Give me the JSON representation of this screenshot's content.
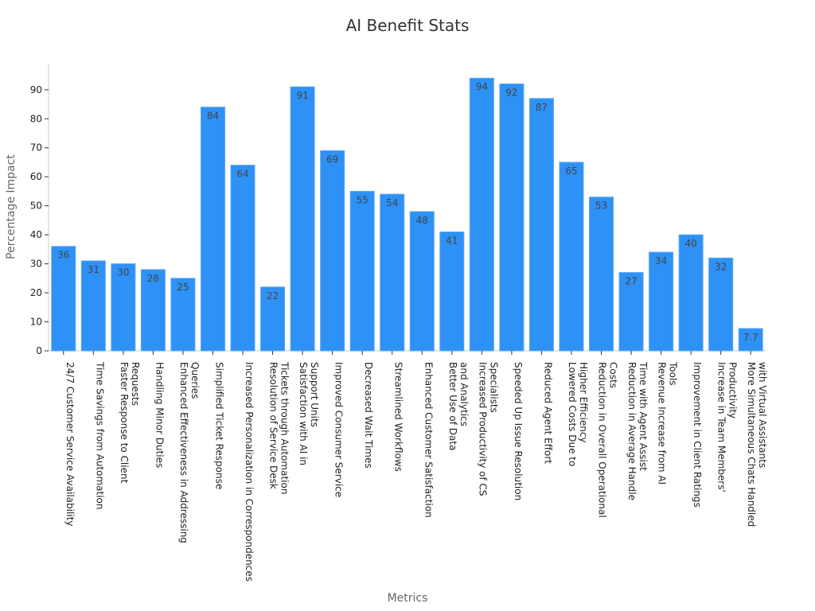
{
  "chart_data": {
    "type": "bar",
    "title": "AI Benefit Stats",
    "xlabel": "Metrics",
    "ylabel": "Percentage Impact",
    "ylim": [
      0,
      99
    ],
    "yticks": [
      0,
      10,
      20,
      30,
      40,
      50,
      60,
      70,
      80,
      90
    ],
    "grid": false,
    "bar_color": "#2e91f5",
    "categories": [
      [
        "24/7 Customer Service Availability"
      ],
      [
        "Time Savings from Automation"
      ],
      [
        "Faster Response to Client",
        "Requests"
      ],
      [
        "Handling Minor Duties"
      ],
      [
        "Enhanced Effectiveness in Addressing",
        "Queries"
      ],
      [
        "Simplified Ticket Response"
      ],
      [
        "Increased Personalization in Correspondences"
      ],
      [
        "Resolution of Service Desk",
        "Tickets through Automation"
      ],
      [
        "Satisfaction with AI in",
        "Support Units"
      ],
      [
        "Improved Consumer Service"
      ],
      [
        "Decreased Wait Times"
      ],
      [
        "Streamlined Workflows"
      ],
      [
        "Enhanced Customer Satisfaction"
      ],
      [
        "Better Use of Data",
        "and Analytics"
      ],
      [
        "Increased Productivity of CS",
        "Specialists"
      ],
      [
        "Speeded Up Issue Resolution"
      ],
      [
        "Reduced Agent Effort"
      ],
      [
        "Lowered Costs Due to",
        "Higher Efficiency"
      ],
      [
        "Reduction in Overall Operational",
        "Costs"
      ],
      [
        "Reduction in Average Handle",
        "Time with Agent Assist"
      ],
      [
        "Revenue Increase from AI",
        "Tools"
      ],
      [
        "Improvement in Client Ratings"
      ],
      [
        "Increase in Team Members'",
        "Productivity"
      ],
      [
        "More Simultaneous Chats Handled",
        "with Virtual Assistants"
      ]
    ],
    "values": [
      36,
      31,
      30,
      28,
      25,
      84,
      64,
      22,
      91,
      69,
      55,
      54,
      48,
      41,
      94,
      92,
      87,
      65,
      53,
      27,
      34,
      40,
      32,
      7.7
    ],
    "value_labels": [
      "36",
      "31",
      "30",
      "28",
      "25",
      "84",
      "64",
      "22",
      "91",
      "69",
      "55",
      "54",
      "48",
      "41",
      "94",
      "92",
      "87",
      "65",
      "53",
      "27",
      "34",
      "40",
      "32",
      "7.7"
    ]
  }
}
